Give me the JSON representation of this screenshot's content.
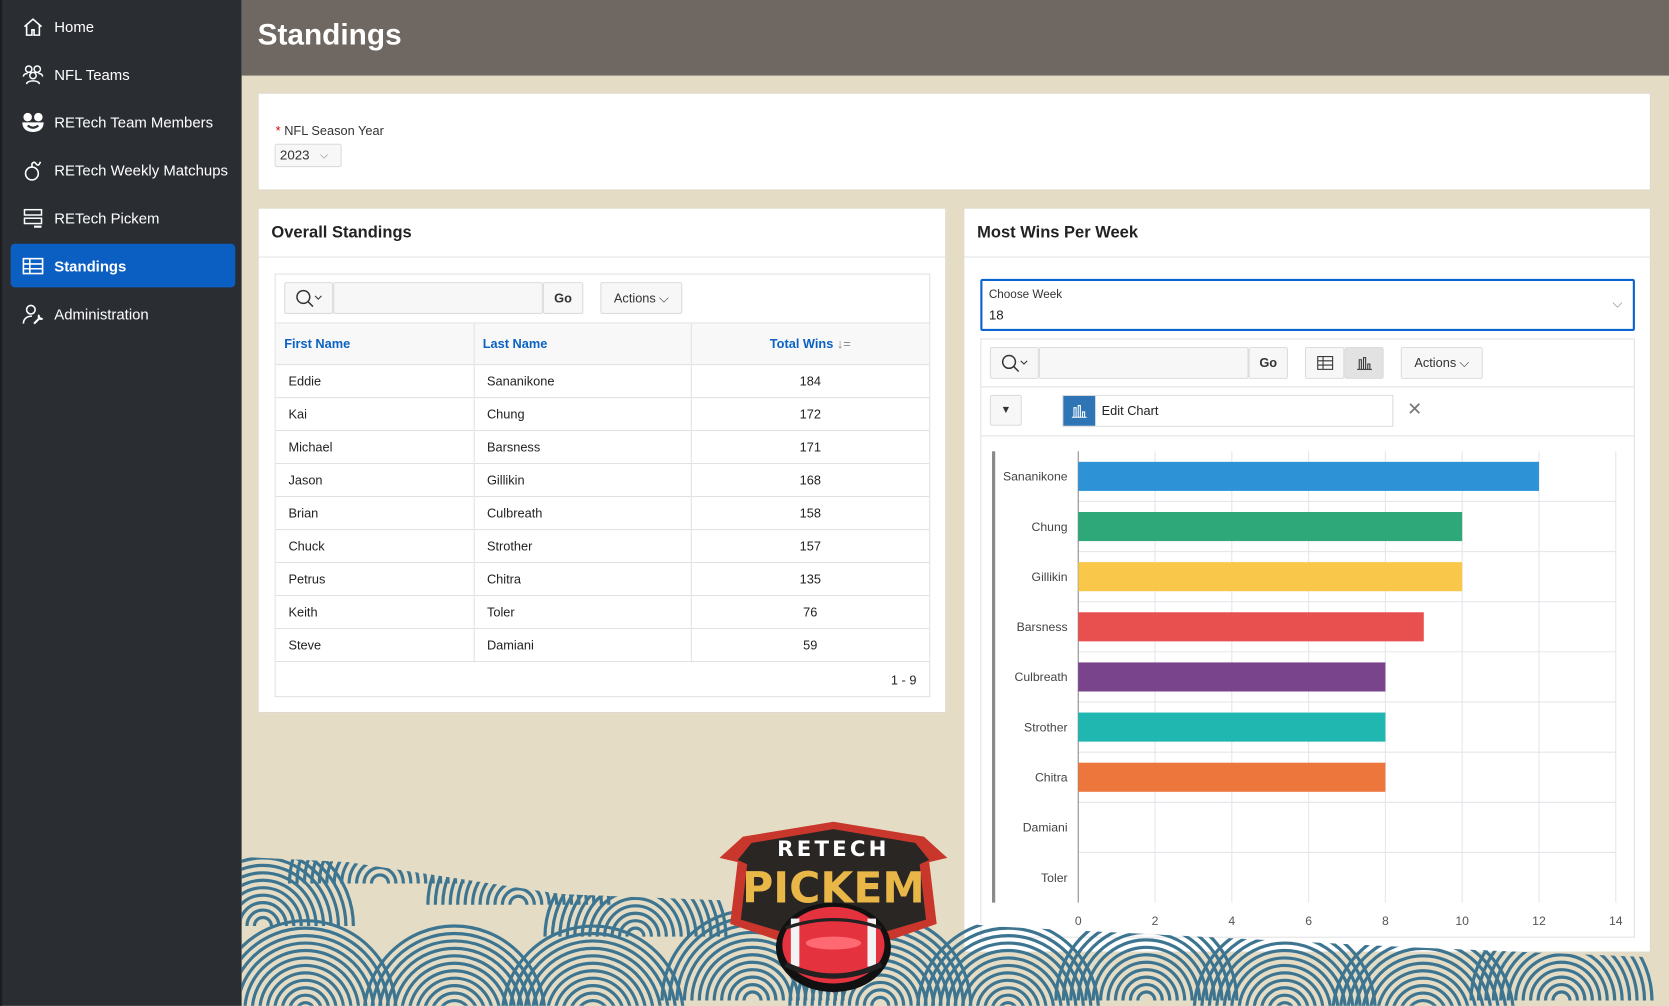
{
  "sidebar": {
    "items": [
      {
        "label": "Home",
        "icon": "home-icon"
      },
      {
        "label": "NFL Teams",
        "icon": "users-icon"
      },
      {
        "label": "RETech Team Members",
        "icon": "smile-icon"
      },
      {
        "label": "RETech Weekly Matchups",
        "icon": "bomb-icon"
      },
      {
        "label": "RETech Pickem",
        "icon": "server-icon"
      },
      {
        "label": "Standings",
        "icon": "table-icon",
        "active": true
      },
      {
        "label": "Administration",
        "icon": "user-wrench-icon"
      }
    ]
  },
  "header": {
    "title": "Standings"
  },
  "filters": {
    "required_mark": "*",
    "season_label": "NFL Season Year",
    "season_value": "2023"
  },
  "standings": {
    "title": "Overall Standings",
    "go_label": "Go",
    "actions_label": "Actions",
    "columns": [
      "First Name",
      "Last Name",
      "Total Wins"
    ],
    "rows": [
      [
        "Eddie",
        "Sananikone",
        "184"
      ],
      [
        "Kai",
        "Chung",
        "172"
      ],
      [
        "Michael",
        "Barsness",
        "171"
      ],
      [
        "Jason",
        "Gillikin",
        "168"
      ],
      [
        "Brian",
        "Culbreath",
        "158"
      ],
      [
        "Chuck",
        "Strother",
        "157"
      ],
      [
        "Petrus",
        "Chitra",
        "135"
      ],
      [
        "Keith",
        "Toler",
        "76"
      ],
      [
        "Steve",
        "Damiani",
        "59"
      ]
    ],
    "pagination": "1 - 9"
  },
  "weekly": {
    "title": "Most Wins Per Week",
    "week_label": "Choose Week",
    "week_value": "18",
    "go_label": "Go",
    "actions_label": "Actions",
    "edit_chart_label": "Edit Chart"
  },
  "logo": {
    "line1": "RETECH",
    "line2": "PICKEM"
  },
  "chart_data": {
    "type": "bar",
    "orientation": "horizontal",
    "categories": [
      "Sananikone",
      "Chung",
      "Gillikin",
      "Barsness",
      "Culbreath",
      "Strother",
      "Chitra",
      "Damiani",
      "Toler"
    ],
    "values": [
      12,
      10,
      10,
      9,
      8,
      8,
      8,
      0,
      0
    ],
    "colors": [
      "#2d93d6",
      "#2ea878",
      "#f9c74a",
      "#e85050",
      "#7a448d",
      "#21b7b1",
      "#ec763c",
      "#cccccc",
      "#cccccc"
    ],
    "xlim": [
      0,
      14
    ],
    "xticks": [
      0,
      2,
      4,
      6,
      8,
      10,
      12,
      14
    ],
    "grid": true
  }
}
